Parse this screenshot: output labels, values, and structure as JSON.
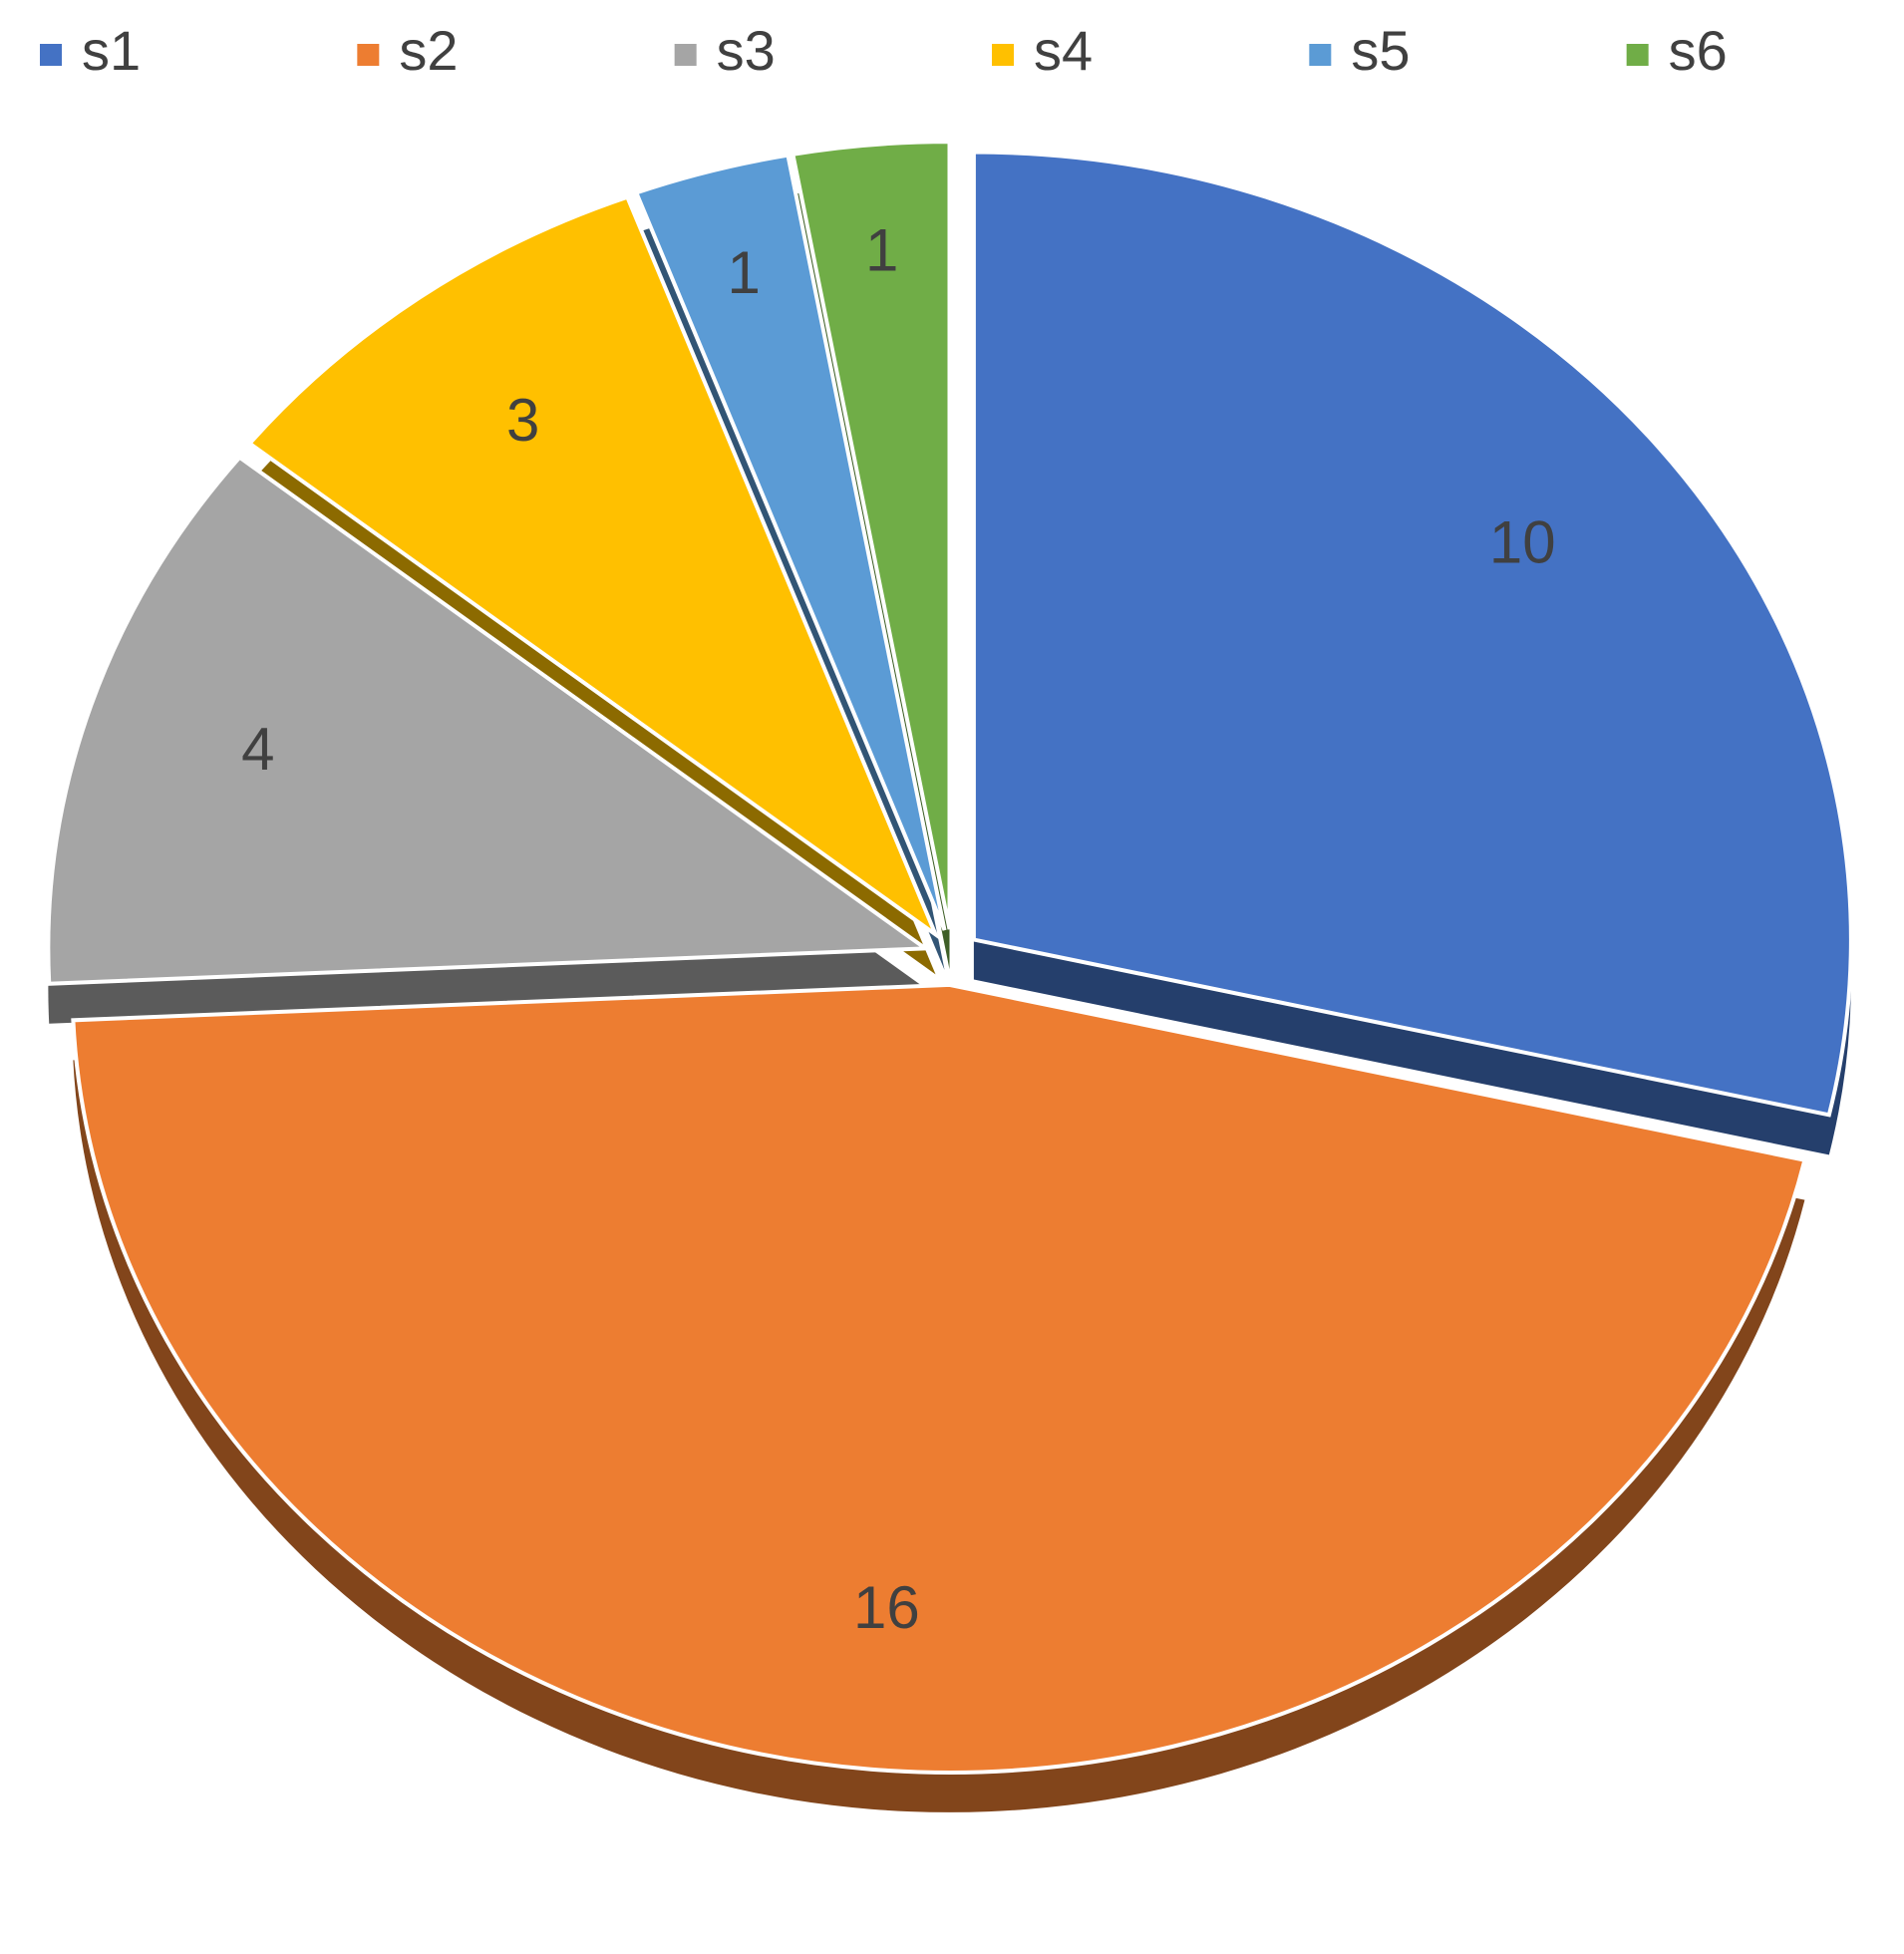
{
  "chart_data": {
    "type": "pie",
    "categories": [
      "s1",
      "s2",
      "s3",
      "s4",
      "s5",
      "s6"
    ],
    "values": [
      10,
      16,
      4,
      3,
      1,
      1
    ],
    "colors": [
      "#4472c4",
      "#ed7d31",
      "#a5a5a5",
      "#ffc000",
      "#5b9bd5",
      "#70ad47"
    ],
    "legend": "top"
  }
}
